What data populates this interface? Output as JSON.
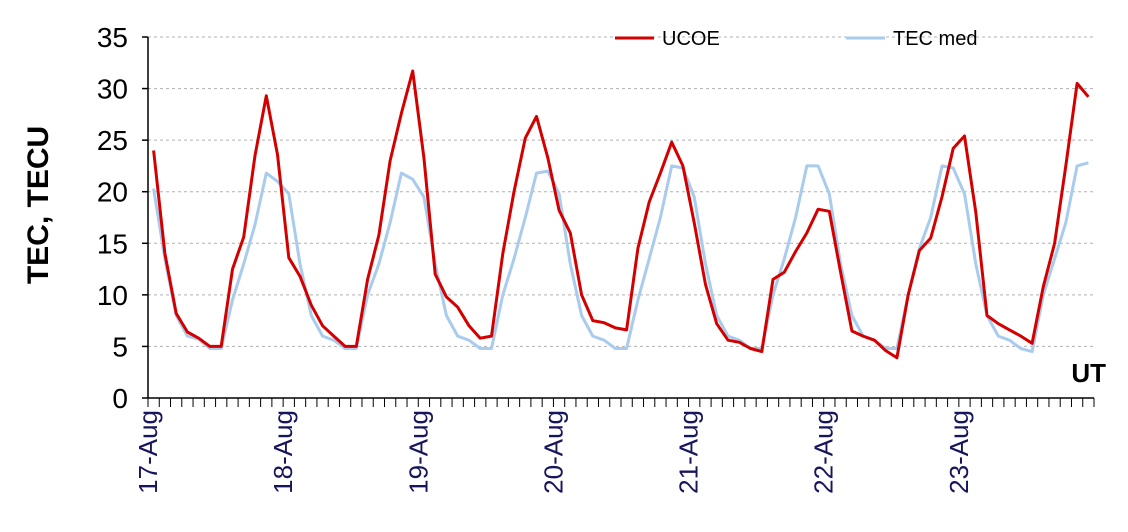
{
  "chart_data": {
    "type": "line",
    "ylabel": "TEC, TECU",
    "xlabel": "UT",
    "ylim": [
      0,
      35
    ],
    "yticks": [
      0,
      5,
      10,
      15,
      20,
      25,
      30,
      35
    ],
    "ygrid": true,
    "legend_position": "top-right",
    "x_step_hours": 2,
    "x_start": "17-Aug 00:00",
    "x_end": "23-Aug 22:00",
    "date_labels": [
      "17-Aug",
      "18-Aug",
      "19-Aug",
      "20-Aug",
      "21-Aug",
      "22-Aug",
      "23-Aug"
    ],
    "series": [
      {
        "name": "UCOE",
        "color": "#d40000",
        "values": [
          24.0,
          14.0,
          8.2,
          6.4,
          5.8,
          5.0,
          5.0,
          12.5,
          15.6,
          23.5,
          29.3,
          23.6,
          13.6,
          11.8,
          9.0,
          7.0,
          6.0,
          5.0,
          5.0,
          11.5,
          15.8,
          23.0,
          27.6,
          31.7,
          23.3,
          12.0,
          9.8,
          8.8,
          7.0,
          5.8,
          6.0,
          14.0,
          20.0,
          25.2,
          27.3,
          23.3,
          18.2,
          16.0,
          10.0,
          7.5,
          7.3,
          6.8,
          6.6,
          14.5,
          19.0,
          21.8,
          24.8,
          22.5,
          17.0,
          11.0,
          7.2,
          5.6,
          5.4,
          4.8,
          4.5,
          11.5,
          12.2,
          14.2,
          16.0,
          18.3,
          18.1,
          12.2,
          6.5,
          6.0,
          5.6,
          4.6,
          3.9,
          10.0,
          14.3,
          15.5,
          19.5,
          24.2,
          25.4,
          18.0,
          8.0,
          7.2,
          6.6,
          6.0,
          5.3,
          10.8,
          15.0,
          22.5,
          30.5,
          29.2
        ]
      },
      {
        "name": "TEC med",
        "color": "#a9cbed",
        "values": [
          20.3,
          13.5,
          8.0,
          6.0,
          5.7,
          4.8,
          4.8,
          9.5,
          13.0,
          16.8,
          21.8,
          21.0,
          19.8,
          13.0,
          8.0,
          6.0,
          5.6,
          4.8,
          4.8,
          10.0,
          13.0,
          17.0,
          21.8,
          21.2,
          19.5,
          13.0,
          8.0,
          6.0,
          5.6,
          4.8,
          4.8,
          10.0,
          13.5,
          17.5,
          21.8,
          22.0,
          19.8,
          13.0,
          8.0,
          6.0,
          5.6,
          4.8,
          4.8,
          9.5,
          13.5,
          17.5,
          22.5,
          22.3,
          19.5,
          13.0,
          8.0,
          6.0,
          5.6,
          4.8,
          4.8,
          10.0,
          13.5,
          17.5,
          22.5,
          22.5,
          19.8,
          13.0,
          8.0,
          6.0,
          5.6,
          4.8,
          4.8,
          10.0,
          14.5,
          17.5,
          22.5,
          22.3,
          19.8,
          13.0,
          8.0,
          6.0,
          5.6,
          4.8,
          4.5,
          10.0,
          13.5,
          17.0,
          22.5,
          22.8
        ]
      }
    ]
  }
}
